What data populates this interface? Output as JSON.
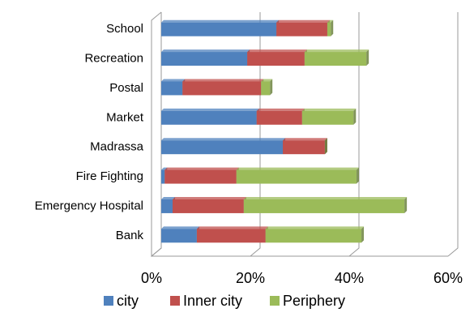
{
  "chart_data": {
    "type": "bar",
    "orientation": "horizontal",
    "stacked": true,
    "categories": [
      "School",
      "Recreation",
      "Postal",
      "Market",
      "Madrassa",
      "Fire Fighting",
      "Emergency Hospital",
      "Bank"
    ],
    "series": [
      {
        "name": "city",
        "color": "#4f81bd",
        "values": [
          23.3,
          17.4,
          4.3,
          19.3,
          24.6,
          0.7,
          2.3,
          7.2
        ]
      },
      {
        "name": "Inner city",
        "color": "#c0504d",
        "values": [
          10.3,
          11.6,
          15.9,
          9.2,
          8.5,
          14.5,
          14.4,
          13.9
        ]
      },
      {
        "name": "Periphery",
        "color": "#9bbb59",
        "values": [
          0.7,
          12.5,
          1.8,
          10.4,
          0,
          24.3,
          32.5,
          19.4
        ]
      }
    ],
    "xlim": [
      0,
      60
    ],
    "xticks": [
      {
        "value": 0,
        "label": "0%"
      },
      {
        "value": 20,
        "label": "20%"
      },
      {
        "value": 40,
        "label": "40%"
      },
      {
        "value": 60,
        "label": "60%"
      }
    ],
    "grid": true,
    "legend": "bottom"
  }
}
